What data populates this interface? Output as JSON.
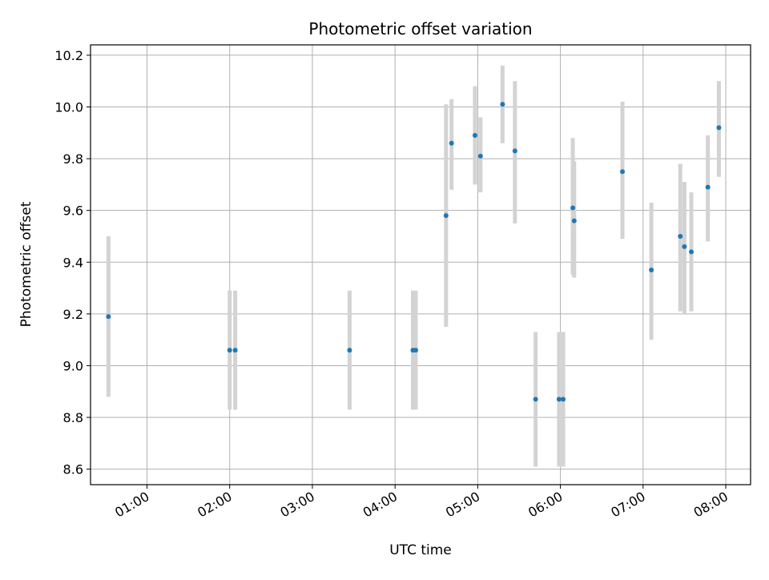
{
  "chart_data": {
    "type": "scatter",
    "title": "Photometric offset variation",
    "xlabel": "UTC time",
    "ylabel": "Photometric offset",
    "x_axis_type": "time",
    "xlim": [
      "00:19",
      "08:18"
    ],
    "ylim": [
      8.54,
      10.24
    ],
    "grid": true,
    "x_tick_labels": [
      "01:00",
      "02:00",
      "03:00",
      "04:00",
      "05:00",
      "06:00",
      "07:00",
      "08:00"
    ],
    "y_tick_labels": [
      "8.6",
      "8.8",
      "9.0",
      "9.2",
      "9.4",
      "9.6",
      "9.8",
      "10.0",
      "10.2"
    ],
    "points": [
      {
        "x": "00:32",
        "y": 9.19,
        "ylow": 8.88,
        "yhigh": 9.5
      },
      {
        "x": "02:00",
        "y": 9.06,
        "ylow": 8.83,
        "yhigh": 9.29
      },
      {
        "x": "02:04",
        "y": 9.06,
        "ylow": 8.83,
        "yhigh": 9.29
      },
      {
        "x": "03:27",
        "y": 9.06,
        "ylow": 8.83,
        "yhigh": 9.29
      },
      {
        "x": "04:13",
        "y": 9.06,
        "ylow": 8.83,
        "yhigh": 9.29
      },
      {
        "x": "04:15",
        "y": 9.06,
        "ylow": 8.83,
        "yhigh": 9.29
      },
      {
        "x": "04:37",
        "y": 9.58,
        "ylow": 9.15,
        "yhigh": 10.01
      },
      {
        "x": "04:41",
        "y": 9.86,
        "ylow": 9.68,
        "yhigh": 10.03
      },
      {
        "x": "04:58",
        "y": 9.89,
        "ylow": 9.7,
        "yhigh": 10.08
      },
      {
        "x": "05:02",
        "y": 9.81,
        "ylow": 9.67,
        "yhigh": 9.96
      },
      {
        "x": "05:18",
        "y": 10.01,
        "ylow": 9.86,
        "yhigh": 10.16
      },
      {
        "x": "05:27",
        "y": 9.83,
        "ylow": 9.55,
        "yhigh": 10.1
      },
      {
        "x": "05:42",
        "y": 8.87,
        "ylow": 8.61,
        "yhigh": 9.13
      },
      {
        "x": "05:59",
        "y": 8.87,
        "ylow": 8.61,
        "yhigh": 9.13
      },
      {
        "x": "06:02",
        "y": 8.87,
        "ylow": 8.61,
        "yhigh": 9.13
      },
      {
        "x": "06:09",
        "y": 9.61,
        "ylow": 9.35,
        "yhigh": 9.88
      },
      {
        "x": "06:10",
        "y": 9.56,
        "ylow": 9.34,
        "yhigh": 9.79
      },
      {
        "x": "06:45",
        "y": 9.75,
        "ylow": 9.49,
        "yhigh": 10.02
      },
      {
        "x": "07:06",
        "y": 9.37,
        "ylow": 9.1,
        "yhigh": 9.63
      },
      {
        "x": "07:27",
        "y": 9.5,
        "ylow": 9.21,
        "yhigh": 9.78
      },
      {
        "x": "07:30",
        "y": 9.46,
        "ylow": 9.2,
        "yhigh": 9.71
      },
      {
        "x": "07:35",
        "y": 9.44,
        "ylow": 9.21,
        "yhigh": 9.67
      },
      {
        "x": "07:47",
        "y": 9.69,
        "ylow": 9.48,
        "yhigh": 9.89
      },
      {
        "x": "07:55",
        "y": 9.92,
        "ylow": 9.73,
        "yhigh": 10.1
      }
    ],
    "colors": {
      "marker": "#1f77b4",
      "errorbar": "#d3d3d3",
      "grid": "#b0b0b0",
      "frame": "#000000"
    }
  }
}
